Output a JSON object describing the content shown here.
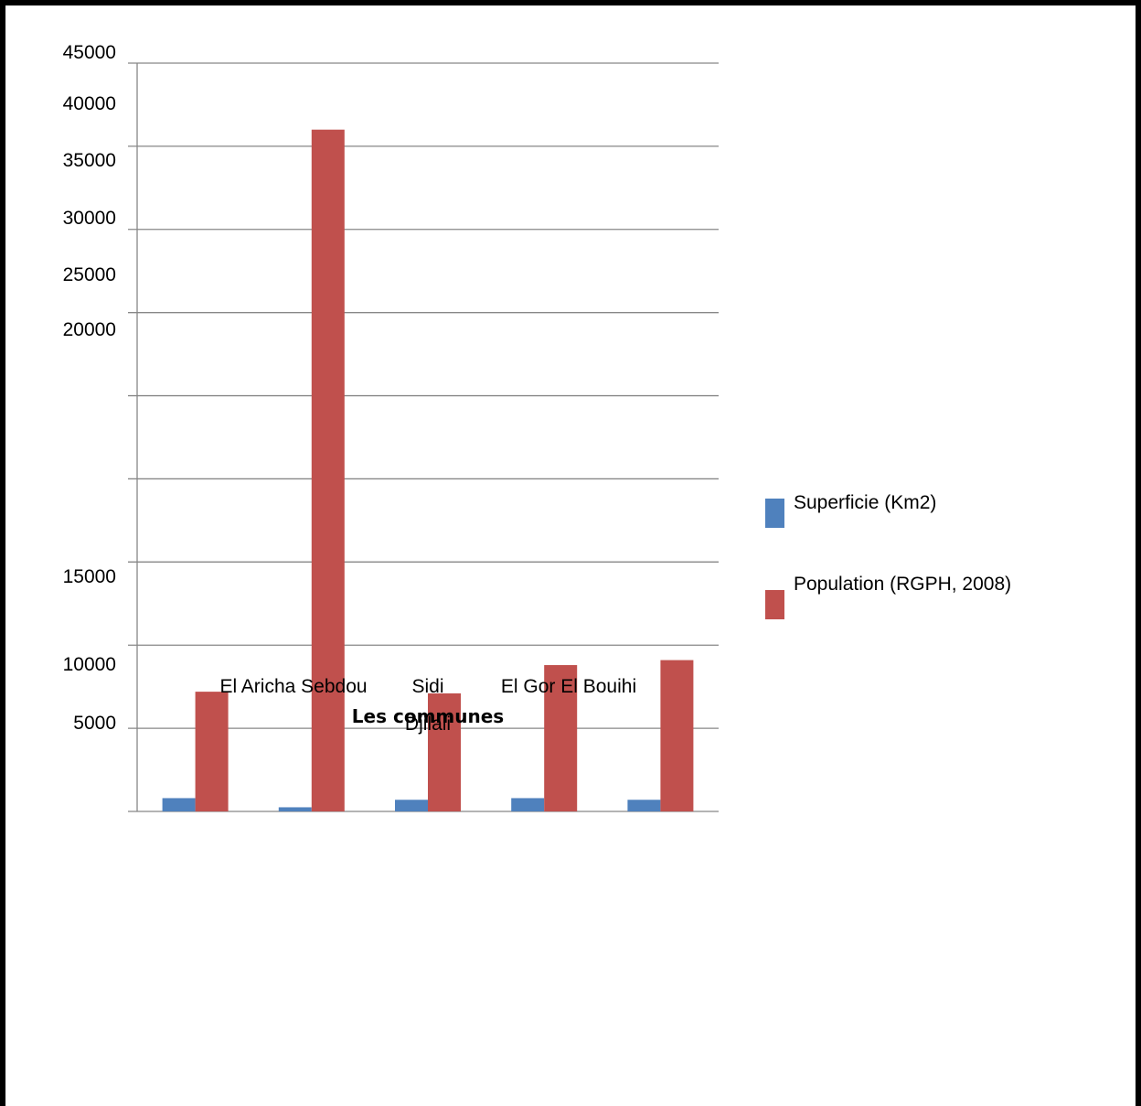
{
  "chart_data": {
    "type": "bar",
    "categories": [
      "El Aricha",
      "Sebdou",
      "Sidi Djilali",
      "El Gor",
      "El Bouihi"
    ],
    "category_labels": [
      {
        "lines": [
          "El Aricha Sebdou"
        ]
      },
      {
        "lines": [
          "Sidi",
          "Djilali"
        ]
      },
      {
        "lines": [
          "El Gor El Bouihi"
        ]
      }
    ],
    "series": [
      {
        "name": "Superficie (Km2)",
        "values": [
          800,
          250,
          700,
          800,
          700
        ],
        "color": "#4f81bd"
      },
      {
        "name": "Population (RGPH, 2008)",
        "values": [
          7200,
          41000,
          7100,
          8800,
          9100
        ],
        "color": "#c0504d"
      }
    ],
    "xlabel": "Les communes",
    "ylabel": "",
    "ylim": [
      0,
      45000
    ],
    "yticks": [
      {
        "label": "45000"
      },
      {
        "label": "40000"
      },
      {
        "label": "35000"
      },
      {
        "label": "30000"
      },
      {
        "label": "25000"
      },
      {
        "label": "20000"
      },
      {
        "label": "15000"
      },
      {
        "label": "10000"
      },
      {
        "label": "5000"
      }
    ],
    "grid": true,
    "legend": "right"
  }
}
